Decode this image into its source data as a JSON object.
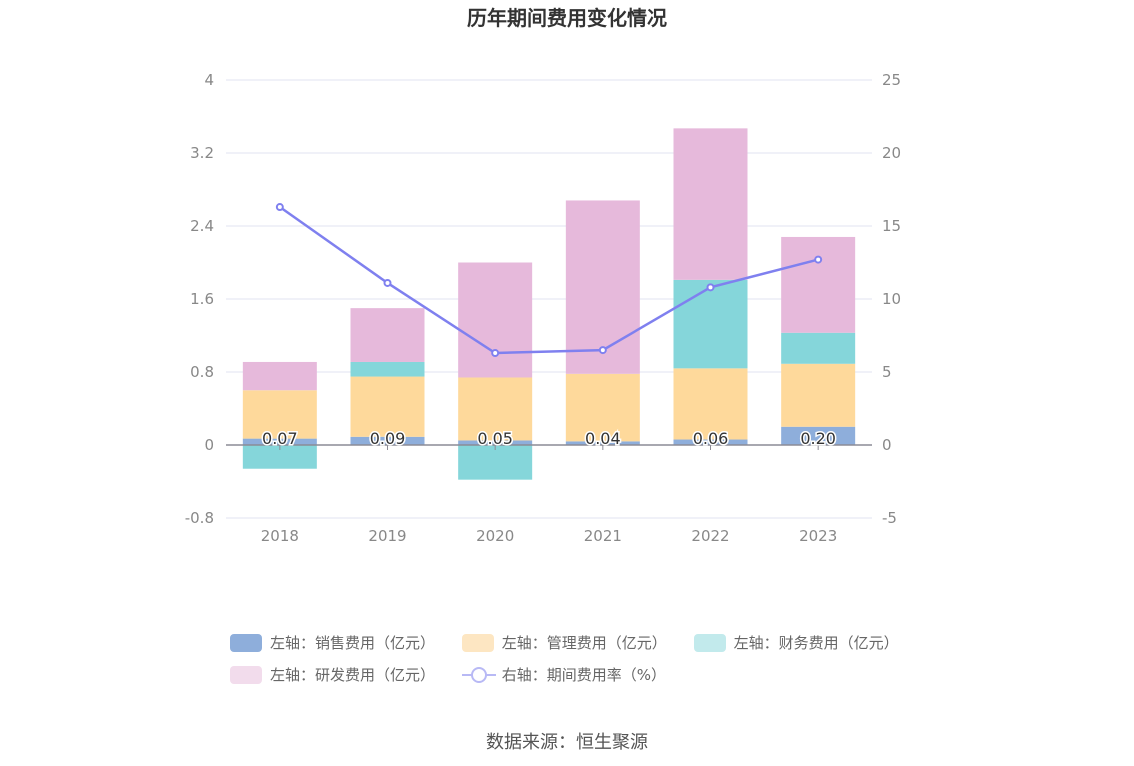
{
  "chart_data": {
    "type": "bar",
    "title": "历年期间费用变化情况",
    "categories": [
      "2018",
      "2019",
      "2020",
      "2021",
      "2022",
      "2023"
    ],
    "left_axis": {
      "ticks": [
        "4",
        "3.2",
        "2.4",
        "1.6",
        "0.8",
        "0",
        "-0.8"
      ],
      "ylim": [
        -0.8,
        4
      ]
    },
    "right_axis": {
      "ticks": [
        "25",
        "20",
        "15",
        "10",
        "5",
        "0",
        "-5"
      ],
      "ylim": [
        -5,
        25
      ]
    },
    "series": [
      {
        "name": "左轴：销售费用（亿元）",
        "axis": "left",
        "stack": "cost",
        "color": "#8eaedb",
        "values": [
          0.07,
          0.09,
          0.05,
          0.04,
          0.06,
          0.2
        ],
        "labels": [
          "0.07",
          "0.09",
          "0.05",
          "0.04",
          "0.06",
          "0.20"
        ]
      },
      {
        "name": "左轴：管理费用（亿元）",
        "axis": "left",
        "stack": "cost",
        "color": "#fed99b",
        "values": [
          0.53,
          0.66,
          0.69,
          0.74,
          0.78,
          0.69
        ]
      },
      {
        "name": "左轴：财务费用（亿元）",
        "axis": "left",
        "stack": "cost",
        "color": "#85d6da",
        "values": [
          -0.26,
          0.16,
          -0.38,
          0.0,
          0.97,
          0.34
        ]
      },
      {
        "name": "左轴：研发费用（亿元）",
        "axis": "left",
        "stack": "cost",
        "color": "#e6b9db",
        "values": [
          0.31,
          0.59,
          1.26,
          1.9,
          1.66,
          1.05
        ]
      },
      {
        "name": "右轴：期间费用率（%）",
        "axis": "right",
        "type": "line",
        "color": "#7f80ef",
        "values": [
          16.3,
          11.1,
          6.3,
          6.5,
          10.8,
          12.7
        ]
      }
    ]
  },
  "source": "数据来源：恒生聚源"
}
